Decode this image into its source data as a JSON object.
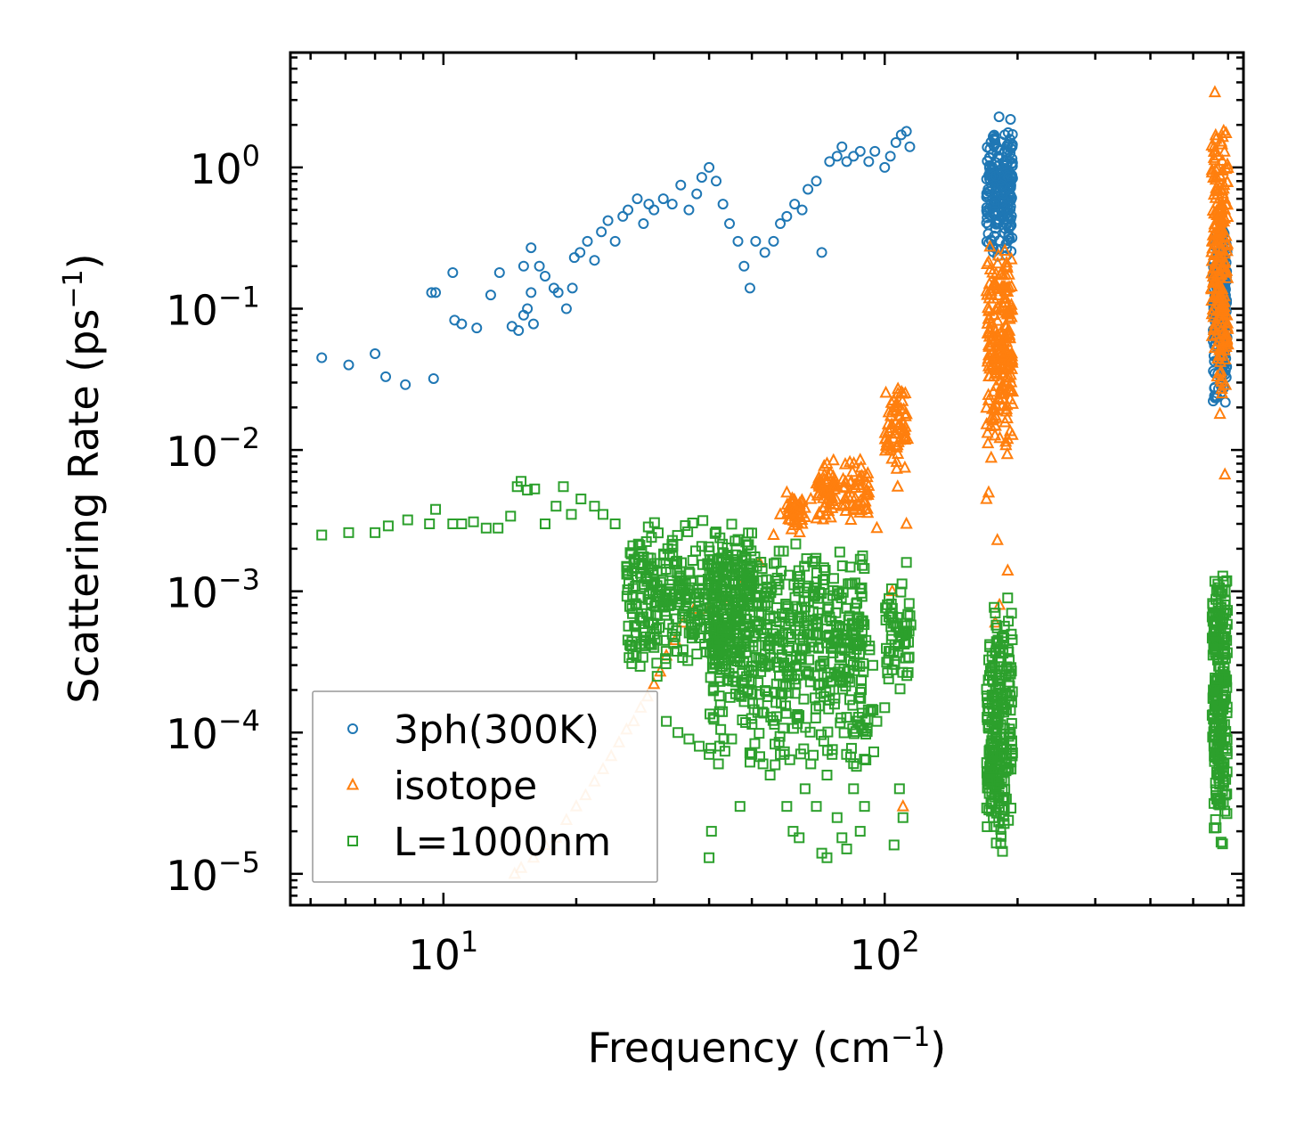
{
  "chart_data": {
    "type": "scatter",
    "xscale": "log",
    "yscale": "log",
    "xlabel": "Frequency (cm",
    "xlabel_sup": "−1",
    "xlabel_tail": ")",
    "ylabel": "Scattering Rate (ps",
    "ylabel_sup": "−1",
    "ylabel_tail": ")",
    "xlim": [
      4.5,
      650
    ],
    "ylim": [
      6e-06,
      6.5
    ],
    "x_ticks": [
      {
        "value": 10,
        "base": "10",
        "exp": "1"
      },
      {
        "value": 100,
        "base": "10",
        "exp": "2"
      }
    ],
    "y_ticks": [
      {
        "value": 1,
        "base": "10",
        "exp": "0"
      },
      {
        "value": 0.1,
        "base": "10",
        "exp": "−1"
      },
      {
        "value": 0.01,
        "base": "10",
        "exp": "−2"
      },
      {
        "value": 0.001,
        "base": "10",
        "exp": "−3"
      },
      {
        "value": 0.0001,
        "base": "10",
        "exp": "−4"
      },
      {
        "value": 1e-05,
        "base": "10",
        "exp": "−5"
      }
    ],
    "legend_position": "lower-left",
    "series": [
      {
        "name": "3ph(300K)",
        "marker": "circle",
        "color": "#1f77b4",
        "points": [
          [
            5.3,
            0.045
          ],
          [
            6.1,
            0.04
          ],
          [
            7.0,
            0.048
          ],
          [
            7.4,
            0.033
          ],
          [
            8.2,
            0.029
          ],
          [
            9.5,
            0.032
          ],
          [
            9.4,
            0.13
          ],
          [
            9.6,
            0.13
          ],
          [
            10.5,
            0.18
          ],
          [
            10.6,
            0.083
          ],
          [
            11.0,
            0.078
          ],
          [
            11.9,
            0.073
          ],
          [
            12.8,
            0.125
          ],
          [
            13.4,
            0.18
          ],
          [
            14.3,
            0.075
          ],
          [
            14.8,
            0.07
          ],
          [
            15.2,
            0.09
          ],
          [
            15.5,
            0.1
          ],
          [
            16.0,
            0.078
          ],
          [
            15.8,
            0.13
          ],
          [
            15.2,
            0.2
          ],
          [
            15.8,
            0.27
          ],
          [
            16.5,
            0.2
          ],
          [
            17.0,
            0.17
          ],
          [
            17.8,
            0.14
          ],
          [
            18.2,
            0.13
          ],
          [
            19.0,
            0.1
          ],
          [
            19.6,
            0.14
          ],
          [
            19.8,
            0.23
          ],
          [
            20.4,
            0.25
          ],
          [
            21.2,
            0.3
          ],
          [
            22.0,
            0.22
          ],
          [
            22.8,
            0.35
          ],
          [
            23.6,
            0.42
          ],
          [
            24.5,
            0.3
          ],
          [
            25.5,
            0.45
          ],
          [
            26.2,
            0.5
          ],
          [
            27.5,
            0.6
          ],
          [
            28.4,
            0.4
          ],
          [
            29.2,
            0.55
          ],
          [
            30.0,
            0.5
          ],
          [
            31.5,
            0.6
          ],
          [
            33.0,
            0.55
          ],
          [
            34.5,
            0.75
          ],
          [
            36.0,
            0.5
          ],
          [
            37.5,
            0.65
          ],
          [
            38.5,
            0.85
          ],
          [
            40.0,
            1.0
          ],
          [
            41.5,
            0.8
          ],
          [
            43.0,
            0.55
          ],
          [
            44.5,
            0.4
          ],
          [
            46.5,
            0.3
          ],
          [
            48.0,
            0.2
          ],
          [
            49.5,
            0.14
          ],
          [
            51.0,
            0.3
          ],
          [
            53.5,
            0.25
          ],
          [
            56.0,
            0.3
          ],
          [
            58.0,
            0.4
          ],
          [
            60.0,
            0.45
          ],
          [
            62.5,
            0.55
          ],
          [
            65.0,
            0.5
          ],
          [
            67.0,
            0.7
          ],
          [
            70.0,
            0.8
          ],
          [
            72.0,
            0.25
          ],
          [
            75.0,
            1.1
          ],
          [
            78.0,
            1.2
          ],
          [
            80.0,
            1.4
          ],
          [
            82.0,
            1.1
          ],
          [
            85.0,
            1.2
          ],
          [
            88.0,
            1.3
          ],
          [
            92.0,
            1.1
          ],
          [
            95.0,
            1.3
          ],
          [
            100.0,
            1.0
          ],
          [
            103.0,
            1.2
          ],
          [
            106.0,
            1.5
          ],
          [
            109.0,
            1.7
          ],
          [
            112.0,
            1.8
          ],
          [
            114.0,
            1.4
          ]
        ],
        "clusters": [
          {
            "x": [
              170,
              195
            ],
            "y": [
              0.2,
              2.4
            ],
            "n": 220
          },
          {
            "x": [
              555,
              598
            ],
            "y": [
              0.02,
              0.45
            ],
            "n": 220
          }
        ]
      },
      {
        "name": "isotope",
        "marker": "triangle",
        "color": "#ff7f0e",
        "points": [
          [
            14.5,
            1e-05
          ],
          [
            15.0,
            1.1e-05
          ],
          [
            16.0,
            1.3e-05
          ],
          [
            17.0,
            1.6e-05
          ],
          [
            18.0,
            1.8e-05
          ],
          [
            19.0,
            2.4e-05
          ],
          [
            20.0,
            3e-05
          ],
          [
            21.0,
            3.6e-05
          ],
          [
            22.0,
            4.5e-05
          ],
          [
            23.0,
            5.5e-05
          ],
          [
            24.0,
            6.8e-05
          ],
          [
            25.0,
            8.5e-05
          ],
          [
            26.0,
            0.000105
          ],
          [
            27.0,
            0.00012
          ],
          [
            28.0,
            0.00015
          ],
          [
            29.0,
            0.00018
          ],
          [
            30.0,
            0.00022
          ],
          [
            31.0,
            0.00027
          ],
          [
            32.0,
            0.00035
          ],
          [
            33.5,
            0.00045
          ],
          [
            35.0,
            0.0006
          ],
          [
            37.0,
            0.00075
          ],
          [
            40.0,
            0.00075
          ],
          [
            43.0,
            0.0009
          ],
          [
            47.0,
            0.0011
          ],
          [
            52.0,
            0.0016
          ],
          [
            56.0,
            0.0025
          ],
          [
            58.0,
            0.0035
          ],
          [
            60.0,
            0.005
          ],
          [
            62.0,
            0.0035
          ],
          [
            65.0,
            0.003
          ],
          [
            68.0,
            0.0045
          ],
          [
            71.0,
            0.006
          ],
          [
            74.0,
            0.008
          ],
          [
            77.0,
            0.0055
          ],
          [
            80.0,
            0.004
          ],
          [
            84.0,
            0.006
          ],
          [
            88.0,
            0.0085
          ],
          [
            92.0,
            0.005
          ],
          [
            96.0,
            0.0028
          ],
          [
            103.0,
            0.01
          ],
          [
            106.0,
            0.02
          ],
          [
            108.0,
            0.015
          ],
          [
            110.0,
            0.025
          ],
          [
            107.0,
            0.0055
          ],
          [
            112.0,
            0.003
          ],
          [
            104.0,
            0.001
          ],
          [
            110.0,
            3e-05
          ],
          [
            170.0,
            0.0045
          ],
          [
            172.0,
            0.005
          ],
          [
            180.0,
            0.0023
          ],
          [
            178.0,
            0.0006
          ],
          [
            182.0,
            0.0008
          ],
          [
            190.0,
            0.0014
          ],
          [
            560.0,
            3.4
          ],
          [
            590.0,
            0.0067
          ],
          [
            575.0,
            0.018
          ]
        ],
        "clusters": [
          {
            "x": [
              60,
              66
            ],
            "y": [
              0.0025,
              0.005
            ],
            "n": 40
          },
          {
            "x": [
              70,
              78
            ],
            "y": [
              0.003,
              0.009
            ],
            "n": 50
          },
          {
            "x": [
              80,
              92
            ],
            "y": [
              0.003,
              0.009
            ],
            "n": 50
          },
          {
            "x": [
              100,
              113
            ],
            "y": [
              0.007,
              0.03
            ],
            "n": 60
          },
          {
            "x": [
              170,
              195
            ],
            "y": [
              0.008,
              0.3
            ],
            "n": 220
          },
          {
            "x": [
              550,
              600
            ],
            "y": [
              0.02,
              2.4
            ],
            "n": 220
          }
        ]
      },
      {
        "name": "L=1000nm",
        "marker": "square",
        "color": "#2ca02c",
        "points": [
          [
            5.3,
            0.0025
          ],
          [
            6.1,
            0.0026
          ],
          [
            7.0,
            0.0026
          ],
          [
            7.5,
            0.0029
          ],
          [
            8.3,
            0.0032
          ],
          [
            9.3,
            0.003
          ],
          [
            9.6,
            0.0038
          ],
          [
            10.5,
            0.003
          ],
          [
            11.0,
            0.003
          ],
          [
            11.7,
            0.0031
          ],
          [
            12.5,
            0.0028
          ],
          [
            13.3,
            0.0028
          ],
          [
            14.2,
            0.0034
          ],
          [
            14.7,
            0.0055
          ],
          [
            15.0,
            0.006
          ],
          [
            15.5,
            0.0052
          ],
          [
            16.1,
            0.0053
          ],
          [
            17.0,
            0.003
          ],
          [
            18.0,
            0.004
          ],
          [
            18.7,
            0.0055
          ],
          [
            19.5,
            0.0035
          ],
          [
            20.5,
            0.0045
          ],
          [
            22.0,
            0.004
          ],
          [
            23.0,
            0.0035
          ],
          [
            24.5,
            0.003
          ],
          [
            26.0,
            0.0015
          ],
          [
            28.0,
            0.0009
          ],
          [
            30.0,
            0.0004
          ],
          [
            30.5,
            0.00025
          ],
          [
            32.0,
            0.00012
          ],
          [
            34.0,
            0.0001
          ],
          [
            36.0,
            9e-05
          ],
          [
            38.0,
            8e-05
          ],
          [
            40.0,
            7e-05
          ],
          [
            42.0,
            6e-05
          ],
          [
            45.0,
            9e-05
          ],
          [
            47.0,
            3e-05
          ],
          [
            40.5,
            2e-05
          ],
          [
            50.0,
            7e-05
          ],
          [
            53.0,
            6e-05
          ],
          [
            55.0,
            5e-05
          ],
          [
            58.0,
            7e-05
          ],
          [
            60.0,
            3e-05
          ],
          [
            62.0,
            2e-05
          ],
          [
            64.0,
            1.8e-05
          ],
          [
            66.0,
            4e-05
          ],
          [
            68.0,
            6e-05
          ],
          [
            70.0,
            3e-05
          ],
          [
            72.0,
            1.4e-05
          ],
          [
            74.0,
            5e-05
          ],
          [
            76.0,
            7e-05
          ],
          [
            78.0,
            2.5e-05
          ],
          [
            80.0,
            1.8e-05
          ],
          [
            82.0,
            1.5e-05
          ],
          [
            85.0,
            4e-05
          ],
          [
            88.0,
            2e-05
          ],
          [
            90.0,
            3e-05
          ],
          [
            96.0,
            0.00012
          ],
          [
            100.0,
            0.00015
          ],
          [
            105.0,
            1.6e-05
          ],
          [
            108.0,
            4e-05
          ],
          [
            110.0,
            2.5e-05
          ],
          [
            112.0,
            0.0016
          ],
          [
            40.0,
            1.3e-05
          ],
          [
            74.0,
            1.3e-05
          ]
        ],
        "clusters": [
          {
            "x": [
              26,
              50
            ],
            "y": [
              0.00025,
              0.0035
            ],
            "n": 380
          },
          {
            "x": [
              40,
              90
            ],
            "y": [
              0.00015,
              0.0025
            ],
            "n": 420
          },
          {
            "x": [
              40,
              95
            ],
            "y": [
              5e-05,
              0.0006
            ],
            "n": 200
          },
          {
            "x": [
              100,
              115
            ],
            "y": [
              0.0002,
              0.0012
            ],
            "n": 60
          },
          {
            "x": [
              170,
              195
            ],
            "y": [
              1.2e-05,
              0.001
            ],
            "n": 240
          },
          {
            "x": [
              552,
              598
            ],
            "y": [
              1.5e-05,
              0.0018
            ],
            "n": 240
          }
        ]
      }
    ]
  }
}
